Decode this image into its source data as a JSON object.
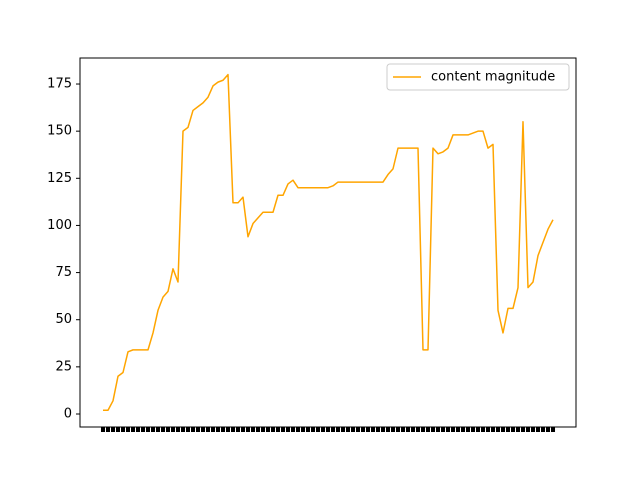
{
  "chart_data": {
    "type": "line",
    "categories": [
      null,
      null,
      null,
      null,
      null,
      null,
      null,
      null,
      null,
      null,
      null,
      null,
      null,
      null,
      null,
      null,
      null,
      null,
      null,
      null,
      null,
      null,
      null,
      null,
      null,
      null,
      null,
      null,
      null,
      null,
      null,
      null,
      null,
      null,
      null,
      null,
      null,
      null,
      null,
      null,
      null,
      null,
      null,
      null,
      null,
      null,
      null,
      null,
      null,
      null,
      null,
      null,
      null,
      null,
      null,
      null,
      null,
      null,
      null,
      null,
      null,
      null,
      null,
      null,
      null,
      null,
      null,
      null,
      null,
      null,
      null,
      null,
      null,
      null,
      null,
      null,
      null,
      null,
      null,
      null,
      null,
      null,
      null,
      null,
      null,
      null,
      null,
      null,
      null,
      null,
      null
    ],
    "series": [
      {
        "name": "content magnitude",
        "color": "#ffa500",
        "values": [
          2,
          2,
          7,
          20,
          22,
          33,
          34,
          34,
          34,
          34,
          43,
          55,
          62,
          65,
          77,
          70,
          150,
          152,
          161,
          163,
          165,
          168,
          174,
          176,
          177,
          180,
          112,
          112,
          115,
          94,
          101,
          104,
          107,
          107,
          107,
          116,
          116,
          122,
          124,
          120,
          120,
          120,
          120,
          120,
          120,
          120,
          121,
          123,
          123,
          123,
          123,
          123,
          123,
          123,
          123,
          123,
          123,
          127,
          130,
          141,
          141,
          141,
          141,
          141,
          34,
          34,
          141,
          138,
          139,
          141,
          148,
          148,
          148,
          148,
          149,
          150,
          150,
          141,
          143,
          55,
          43,
          56,
          56,
          67,
          155,
          67,
          70,
          84,
          91,
          98,
          103
        ]
      }
    ],
    "ylim": [
      -6.9,
      188.8
    ],
    "yticks": [
      0,
      25,
      50,
      75,
      100,
      125,
      150,
      175
    ],
    "legend": "upper right",
    "grid": false
  }
}
